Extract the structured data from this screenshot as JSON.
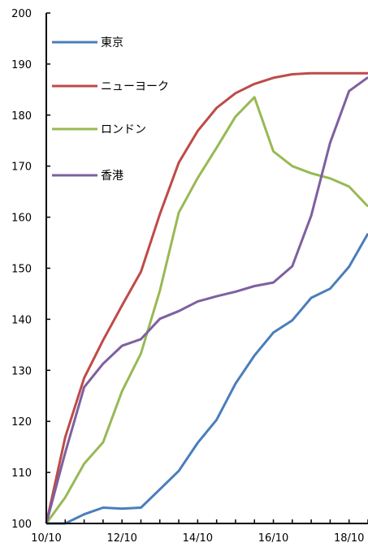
{
  "chart_data": {
    "type": "line",
    "title": "",
    "xlabel": "",
    "ylabel": "",
    "x": [
      0,
      0.5,
      1,
      1.5,
      2,
      2.5,
      3,
      3.5,
      4,
      4.5,
      5,
      5.5,
      6,
      6.5,
      7,
      7.5,
      8,
      8.5
    ],
    "xlim": [
      0,
      8.5
    ],
    "xticks": [
      0,
      2,
      4,
      6,
      8
    ],
    "xtick_labels": [
      "10/10",
      "12/10",
      "14/10",
      "16/10",
      "18/10"
    ],
    "ylim": [
      100,
      200
    ],
    "yticks": [
      100,
      110,
      120,
      130,
      140,
      150,
      160,
      170,
      180,
      190,
      200
    ],
    "ytick_labels": [
      "100",
      "110",
      "120",
      "130",
      "140",
      "150",
      "160",
      "170",
      "180",
      "190",
      "200"
    ],
    "grid": false,
    "legend_position": "top-left",
    "series": [
      {
        "name": "東京",
        "color": "#4a7ebb",
        "values": [
          100,
          100,
          101.8,
          103.1,
          102.9,
          103.1,
          106.7,
          110.3,
          115.8,
          120.3,
          127.4,
          132.9,
          137.4,
          139.8,
          144.2,
          146,
          150.3,
          156.8
        ]
      },
      {
        "name": "ニューヨーク",
        "color": "#be4b48",
        "values": [
          100,
          116.9,
          128.5,
          135.9,
          142.7,
          149.3,
          160.6,
          170.7,
          176.9,
          181.4,
          184.3,
          186.1,
          187.3,
          188,
          188.2,
          188.2,
          188.2,
          188.2
        ]
      },
      {
        "name": "ロンドン",
        "color": "#98b954",
        "values": [
          100,
          105.1,
          111.7,
          115.9,
          125.9,
          133.3,
          145.6,
          160.9,
          167.7,
          173.6,
          179.7,
          183.5,
          172.9,
          170,
          168.6,
          167.6,
          166,
          162.1
        ]
      },
      {
        "name": "香港",
        "color": "#7d60a0",
        "values": [
          100,
          113.9,
          126.7,
          131.3,
          134.8,
          136.1,
          140.1,
          141.6,
          143.5,
          144.5,
          145.4,
          146.5,
          147.2,
          150.4,
          160.3,
          174.6,
          184.7,
          187.4
        ]
      }
    ]
  }
}
